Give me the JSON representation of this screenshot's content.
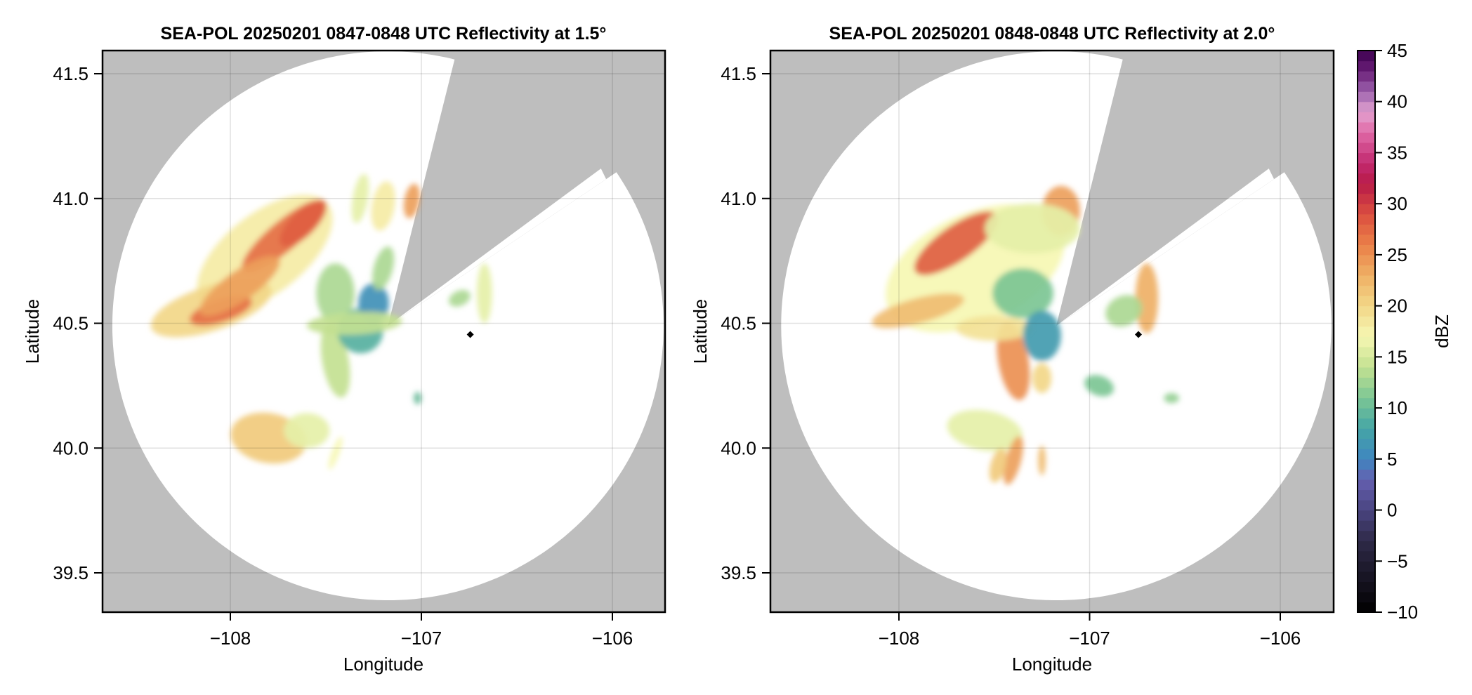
{
  "colormap": {
    "name": "reflectivity",
    "label": "dBZ",
    "range": [
      -10,
      45
    ],
    "step": 1,
    "ticks": [
      -10,
      -5,
      0,
      5,
      10,
      15,
      20,
      25,
      30,
      35,
      40,
      45
    ],
    "tick_labels": [
      "−10",
      "−5",
      "0",
      "5",
      "10",
      "15",
      "20",
      "25",
      "30",
      "35",
      "40",
      "45"
    ],
    "anchors": [
      {
        "v": -10,
        "c": "#000000"
      },
      {
        "v": -7,
        "c": "#15121f"
      },
      {
        "v": -3,
        "c": "#2e2a48"
      },
      {
        "v": 0,
        "c": "#4a4480"
      },
      {
        "v": 3,
        "c": "#6460b0"
      },
      {
        "v": 5,
        "c": "#3f86c0"
      },
      {
        "v": 8,
        "c": "#45a5a6"
      },
      {
        "v": 11,
        "c": "#7cc694"
      },
      {
        "v": 14,
        "c": "#c3e191"
      },
      {
        "v": 17,
        "c": "#f6f7b3"
      },
      {
        "v": 20,
        "c": "#f2d788"
      },
      {
        "v": 23,
        "c": "#efb065"
      },
      {
        "v": 26,
        "c": "#ea8048"
      },
      {
        "v": 29,
        "c": "#db4f3f"
      },
      {
        "v": 32,
        "c": "#b81b48"
      },
      {
        "v": 34,
        "c": "#c22a70"
      },
      {
        "v": 37,
        "c": "#e06aa7"
      },
      {
        "v": 39,
        "c": "#e3a2d0"
      },
      {
        "v": 41,
        "c": "#9c62ad"
      },
      {
        "v": 43,
        "c": "#6b1f78"
      },
      {
        "v": 45,
        "c": "#3c0050"
      }
    ]
  },
  "colors": {
    "blocked": "#bebebe",
    "coverage": "#ffffff",
    "grid": "#d3d3d3",
    "frame": "#000000",
    "marker": "#000000"
  },
  "chart_data": [
    {
      "type": "heatmap",
      "title": "SEA-POL 20250201 0847-0848 UTC Reflectivity at 1.5°",
      "xlabel": "Longitude",
      "ylabel": "Latitude",
      "xlim": [
        -108.67,
        -105.72
      ],
      "ylim": [
        39.34,
        41.59
      ],
      "grid": true,
      "xticks": [
        -108,
        -107,
        -106
      ],
      "xtick_labels": [
        "−108",
        "−107",
        "−106"
      ],
      "yticks": [
        39.5,
        40.0,
        40.5,
        41.0,
        41.5
      ],
      "ytick_labels": [
        "39.5",
        "40.0",
        "40.5",
        "41.0",
        "41.5"
      ],
      "radar": {
        "lon": -107.175,
        "lat": 40.49,
        "range_deg_lon": 1.45,
        "range_deg_lat": 1.1,
        "blocked_sector_deg": [
          14,
          56
        ]
      },
      "marker": {
        "lon": -106.744,
        "lat": 40.455
      },
      "echoes": [
        {
          "lon": -107.82,
          "lat": 40.78,
          "rlon": 0.42,
          "rlat": 0.16,
          "rot": -38,
          "dbz": 18
        },
        {
          "lon": -107.72,
          "lat": 40.85,
          "rlon": 0.28,
          "rlat": 0.06,
          "rot": -40,
          "dbz": 27
        },
        {
          "lon": -108.1,
          "lat": 40.56,
          "rlon": 0.33,
          "rlat": 0.09,
          "rot": -18,
          "dbz": 20
        },
        {
          "lon": -108.05,
          "lat": 40.55,
          "rlon": 0.17,
          "rlat": 0.045,
          "rot": -18,
          "dbz": 27
        },
        {
          "lon": -107.95,
          "lat": 40.65,
          "rlon": 0.25,
          "rlat": 0.06,
          "rot": -35,
          "dbz": 24
        },
        {
          "lon": -107.62,
          "lat": 40.9,
          "rlon": 0.16,
          "rlat": 0.05,
          "rot": -45,
          "dbz": 28
        },
        {
          "lon": -107.45,
          "lat": 40.62,
          "rlon": 0.1,
          "rlat": 0.12,
          "rot": 0,
          "dbz": 13
        },
        {
          "lon": -107.45,
          "lat": 40.35,
          "rlon": 0.07,
          "rlat": 0.15,
          "rot": -10,
          "dbz": 14
        },
        {
          "lon": -107.32,
          "lat": 40.47,
          "rlon": 0.12,
          "rlat": 0.09,
          "rot": 20,
          "dbz": 9
        },
        {
          "lon": -107.25,
          "lat": 40.58,
          "rlon": 0.08,
          "rlat": 0.08,
          "rot": 0,
          "dbz": 6
        },
        {
          "lon": -107.2,
          "lat": 40.72,
          "rlon": 0.05,
          "rlat": 0.09,
          "rot": 15,
          "dbz": 13
        },
        {
          "lon": -107.05,
          "lat": 40.99,
          "rlon": 0.04,
          "rlat": 0.07,
          "rot": 10,
          "dbz": 24
        },
        {
          "lon": -107.2,
          "lat": 40.97,
          "rlon": 0.06,
          "rlat": 0.1,
          "rot": 10,
          "dbz": 18
        },
        {
          "lon": -107.32,
          "lat": 41.0,
          "rlon": 0.04,
          "rlat": 0.1,
          "rot": 10,
          "dbz": 16
        },
        {
          "lon": -107.35,
          "lat": 40.5,
          "rlon": 0.25,
          "rlat": 0.045,
          "rot": -3,
          "dbz": 14
        },
        {
          "lon": -107.8,
          "lat": 40.04,
          "rlon": 0.2,
          "rlat": 0.1,
          "rot": 10,
          "dbz": 21
        },
        {
          "lon": -107.6,
          "lat": 40.07,
          "rlon": 0.12,
          "rlat": 0.07,
          "rot": 0,
          "dbz": 16
        },
        {
          "lon": -107.45,
          "lat": 39.98,
          "rlon": 0.02,
          "rlat": 0.07,
          "rot": 20,
          "dbz": 17
        },
        {
          "lon": -106.67,
          "lat": 40.62,
          "rlon": 0.04,
          "rlat": 0.12,
          "rot": 0,
          "dbz": 16
        },
        {
          "lon": -106.8,
          "lat": 40.6,
          "rlon": 0.06,
          "rlat": 0.03,
          "rot": -25,
          "dbz": 13
        },
        {
          "lon": -107.02,
          "lat": 40.2,
          "rlon": 0.02,
          "rlat": 0.025,
          "rot": 0,
          "dbz": 10
        }
      ]
    },
    {
      "type": "heatmap",
      "title": "SEA-POL 20250201 0848-0848 UTC Reflectivity at 2.0°",
      "xlabel": "Longitude",
      "ylabel": "Latitude",
      "xlim": [
        -108.67,
        -105.72
      ],
      "ylim": [
        39.34,
        41.59
      ],
      "grid": true,
      "xticks": [
        -108,
        -107,
        -106
      ],
      "xtick_labels": [
        "−108",
        "−107",
        "−106"
      ],
      "yticks": [
        39.5,
        40.0,
        40.5,
        41.0,
        41.5
      ],
      "ytick_labels": [
        "39.5",
        "40.0",
        "40.5",
        "41.0",
        "41.5"
      ],
      "radar": {
        "lon": -107.175,
        "lat": 40.49,
        "range_deg_lon": 1.45,
        "range_deg_lat": 1.1,
        "blocked_sector_deg": [
          14,
          56
        ]
      },
      "marker": {
        "lon": -106.744,
        "lat": 40.455
      },
      "echoes": [
        {
          "lon": -107.6,
          "lat": 40.72,
          "rlon": 0.5,
          "rlat": 0.22,
          "rot": -25,
          "dbz": 17
        },
        {
          "lon": -107.7,
          "lat": 40.82,
          "rlon": 0.26,
          "rlat": 0.07,
          "rot": -35,
          "dbz": 28
        },
        {
          "lon": -107.35,
          "lat": 40.62,
          "rlon": 0.16,
          "rlat": 0.1,
          "rot": 0,
          "dbz": 11
        },
        {
          "lon": -107.9,
          "lat": 40.55,
          "rlon": 0.25,
          "rlat": 0.05,
          "rot": -15,
          "dbz": 22
        },
        {
          "lon": -107.15,
          "lat": 40.95,
          "rlon": 0.1,
          "rlat": 0.1,
          "rot": 0,
          "dbz": 24
        },
        {
          "lon": -107.3,
          "lat": 40.88,
          "rlon": 0.25,
          "rlat": 0.1,
          "rot": 0,
          "dbz": 16
        },
        {
          "lon": -107.4,
          "lat": 40.35,
          "rlon": 0.08,
          "rlat": 0.16,
          "rot": -10,
          "dbz": 25
        },
        {
          "lon": -107.5,
          "lat": 40.48,
          "rlon": 0.2,
          "rlat": 0.05,
          "rot": 0,
          "dbz": 19
        },
        {
          "lon": -107.25,
          "lat": 40.45,
          "rlon": 0.1,
          "rlat": 0.1,
          "rot": 0,
          "dbz": 7
        },
        {
          "lon": -107.25,
          "lat": 40.28,
          "rlon": 0.05,
          "rlat": 0.06,
          "rot": 0,
          "dbz": 20
        },
        {
          "lon": -106.7,
          "lat": 40.6,
          "rlon": 0.06,
          "rlat": 0.14,
          "rot": 0,
          "dbz": 23
        },
        {
          "lon": -106.82,
          "lat": 40.55,
          "rlon": 0.1,
          "rlat": 0.06,
          "rot": -25,
          "dbz": 13
        },
        {
          "lon": -106.95,
          "lat": 40.25,
          "rlon": 0.08,
          "rlat": 0.04,
          "rot": 20,
          "dbz": 11
        },
        {
          "lon": -107.55,
          "lat": 40.07,
          "rlon": 0.2,
          "rlat": 0.08,
          "rot": 10,
          "dbz": 16
        },
        {
          "lon": -107.4,
          "lat": 39.95,
          "rlon": 0.04,
          "rlat": 0.1,
          "rot": 15,
          "dbz": 24
        },
        {
          "lon": -107.48,
          "lat": 39.93,
          "rlon": 0.04,
          "rlat": 0.07,
          "rot": 15,
          "dbz": 21
        },
        {
          "lon": -107.25,
          "lat": 39.95,
          "rlon": 0.02,
          "rlat": 0.06,
          "rot": 0,
          "dbz": 22
        },
        {
          "lon": -106.57,
          "lat": 40.2,
          "rlon": 0.04,
          "rlat": 0.02,
          "rot": 0,
          "dbz": 12
        }
      ]
    }
  ]
}
